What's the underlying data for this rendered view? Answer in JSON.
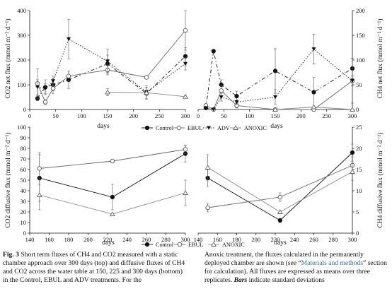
{
  "chart_data": [
    {
      "type": "line",
      "ylabel": "CO2 net flux (mmol m-2 d-1)",
      "xlabel": "",
      "xlim": [
        0,
        300
      ],
      "ylim": [
        0,
        400
      ],
      "yticks": [
        0,
        100,
        200,
        300,
        400
      ],
      "xticks": [
        0,
        50,
        100,
        150,
        200,
        250,
        300
      ],
      "tick_labels_x": [
        "0",
        "50",
        "100",
        "150",
        "200",
        "250",
        "300"
      ],
      "tick_labels_y": [
        "0",
        "100",
        "200",
        "300",
        "400"
      ],
      "series": [
        {
          "name": "Control",
          "x": [
            15,
            30,
            45,
            75,
            150,
            225,
            300
          ],
          "y": [
            45,
            90,
            100,
            120,
            185,
            65,
            215
          ],
          "err": [
            10,
            30,
            25,
            35,
            35,
            25,
            35
          ]
        },
        {
          "name": "EBUL",
          "x": [
            15,
            30,
            45,
            75,
            150,
            225,
            300
          ],
          "y": [
            105,
            30,
            85,
            135,
            160,
            130,
            320
          ],
          "err": [
            60,
            10,
            20,
            20,
            20,
            0,
            80
          ]
        },
        {
          "name": "ADV",
          "x": [
            15,
            30,
            45,
            75,
            150,
            225,
            300
          ],
          "y": [
            90,
            85,
            115,
            285,
            195,
            70,
            185
          ],
          "err": [
            30,
            20,
            20,
            80,
            50,
            25,
            25
          ]
        },
        {
          "name": "ANOXIC",
          "x": [
            150,
            225,
            300
          ],
          "y": [
            70,
            68,
            52
          ],
          "err": [
            15,
            10,
            5
          ]
        }
      ]
    },
    {
      "type": "line",
      "ylabel": "CH4 net flux (mmol m-2 d-1)",
      "xlabel": "days",
      "xlim": [
        0,
        300
      ],
      "ylim": [
        0,
        200
      ],
      "yticks": [
        0,
        50,
        100,
        150,
        200
      ],
      "xticks": [
        0,
        50,
        100,
        150,
        200,
        250,
        300
      ],
      "tick_labels_x": [
        "0",
        "50",
        "100",
        "150",
        "200",
        "250",
        "300"
      ],
      "tick_labels_y": [
        "0",
        "50",
        "100",
        "150",
        "200"
      ],
      "series": [
        {
          "name": "Control",
          "x": [
            15,
            30,
            45,
            75,
            150,
            225,
            300
          ],
          "y": [
            3,
            118,
            50,
            27,
            78,
            35,
            83
          ],
          "err": [
            2,
            0,
            10,
            10,
            45,
            30,
            20
          ]
        },
        {
          "name": "EBUL",
          "x": [
            15,
            30,
            45,
            75,
            150,
            225,
            300
          ],
          "y": [
            8,
            0,
            38,
            8,
            0,
            0,
            58
          ],
          "err": [
            3,
            0,
            10,
            5,
            0,
            0,
            10
          ]
        },
        {
          "name": "ADV",
          "x": [
            15,
            30,
            45,
            75,
            150,
            225,
            300
          ],
          "y": [
            3,
            0,
            25,
            15,
            25,
            122,
            58
          ],
          "err": [
            2,
            0,
            8,
            5,
            15,
            30,
            45
          ]
        },
        {
          "name": "ANOXIC",
          "x": [
            150,
            225,
            300
          ],
          "y": [
            0,
            5,
            0
          ],
          "err": [
            0,
            0,
            0
          ]
        }
      ]
    },
    {
      "type": "line",
      "ylabel": "CO2 diffusive flux (mmol m-2 d-1)",
      "xlabel": "days",
      "xlim": [
        140,
        300
      ],
      "ylim": [
        0,
        100
      ],
      "yticks": [
        0,
        10,
        20,
        30,
        40,
        50,
        60,
        70,
        80,
        90,
        100
      ],
      "xticks": [
        140,
        160,
        180,
        200,
        220,
        240,
        260,
        280,
        300
      ],
      "tick_labels_x": [
        "140",
        "160",
        "180",
        "200",
        "220",
        "240",
        "260",
        "280",
        "300"
      ],
      "tick_labels_y": [
        "0",
        "10",
        "20",
        "30",
        "40",
        "50",
        "60",
        "70",
        "80",
        "90",
        "100"
      ],
      "series": [
        {
          "name": "Control",
          "x": [
            150,
            225,
            300
          ],
          "y": [
            52,
            34,
            75
          ],
          "err": [
            22,
            12,
            8
          ]
        },
        {
          "name": "EBUL",
          "x": [
            150,
            225,
            300
          ],
          "y": [
            61,
            68,
            79
          ],
          "err": [
            15,
            0,
            4
          ]
        },
        {
          "name": "ANOXIC",
          "x": [
            150,
            225,
            300
          ],
          "y": [
            36,
            18,
            38
          ],
          "err": [
            14,
            0,
            12
          ]
        }
      ]
    },
    {
      "type": "line",
      "ylabel": "CH4 diffusive flux (mmol m-2 d-1)",
      "xlabel": "days",
      "xlim": [
        140,
        300
      ],
      "ylim": [
        0,
        25
      ],
      "yticks": [
        0,
        5,
        10,
        15,
        20,
        25
      ],
      "xticks": [
        140,
        160,
        180,
        200,
        220,
        240,
        260,
        280,
        300
      ],
      "tick_labels_x": [
        "140",
        "160",
        "180",
        "200",
        "220",
        "240",
        "260",
        "280",
        "300"
      ],
      "tick_labels_y": [
        "0",
        "5",
        "10",
        "15",
        "20",
        "25"
      ],
      "series": [
        {
          "name": "Control",
          "x": [
            150,
            225,
            300
          ],
          "y": [
            13,
            3,
            19
          ],
          "err": [
            2,
            0.5,
            2
          ]
        },
        {
          "name": "EBUL",
          "x": [
            150,
            225,
            300
          ],
          "y": [
            6,
            8.5,
            16
          ],
          "err": [
            1,
            1,
            2
          ]
        },
        {
          "name": "ANOXIC",
          "x": [
            150,
            225,
            300
          ],
          "y": [
            15.5,
            5,
            14.5
          ],
          "err": [
            3,
            0,
            2
          ]
        }
      ]
    }
  ],
  "labels": {
    "co2_net_ylabel": "CO2 net flux (mmol m⁻² d⁻¹)",
    "ch4_net_ylabel": "CH4 net flux (mmol m⁻² d⁻¹)",
    "co2_diff_ylabel": "CO2 diffusive flux (mmol m⁻² d⁻¹)",
    "ch4_diff_ylabel": "CH4 diffusive flux (mmol m⁻² d⁻¹)",
    "days": "days"
  },
  "legend_top": [
    "Control",
    "EBUL",
    "ADV",
    "ANOXIC"
  ],
  "legend_bottom": [
    "Control",
    "EBUL",
    "ANOXIC"
  ],
  "caption": {
    "fig_label": "Fig. 3",
    "left_text": "Short term fluxes of CH4 and CO2 measured with a static chamber approach over 300 days (top) and diffusive fluxes of CH4 and CO2 across the water table at 150, 225 and 300 days (bottom) in the Control, EBUL and ADV treatments. For the",
    "right_text_1": "Anoxic treatment, the fluxes calculated in the permanently deployed chamber are shown (see “",
    "right_link": "Materials and methods",
    "right_text_2": "” section for calculation). All fluxes are expressed as means over three replicates. ",
    "right_bars": "Bars",
    "right_text_3": " indicate standard deviations"
  }
}
